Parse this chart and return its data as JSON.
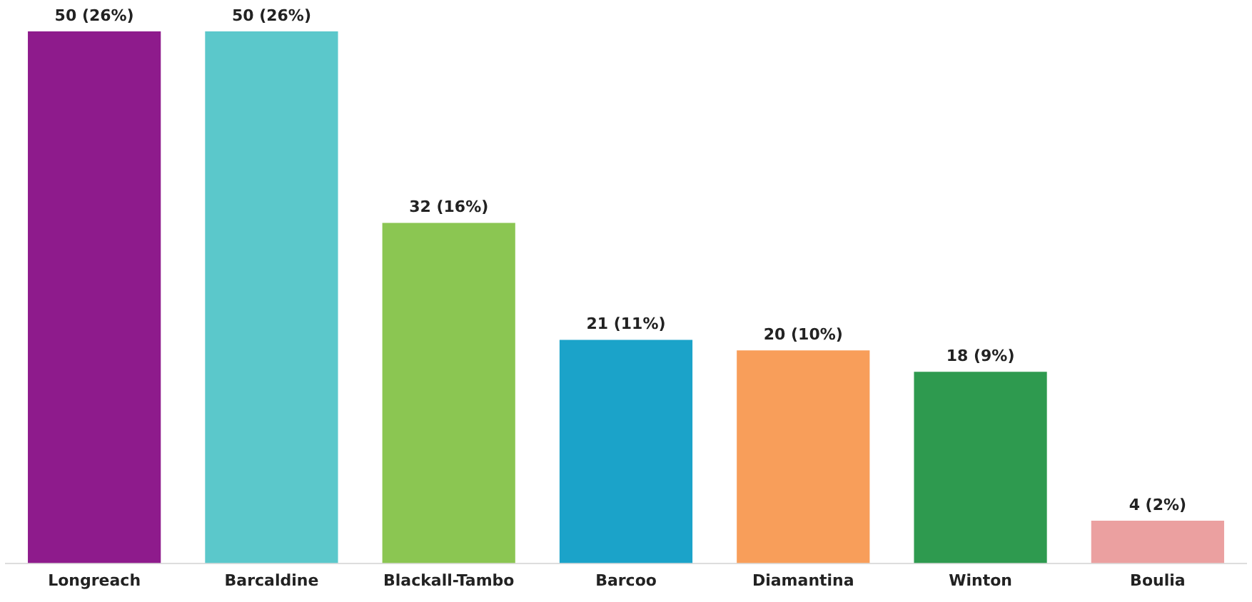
{
  "chart_data": {
    "type": "bar",
    "categories": [
      "Longreach",
      "Barcaldine",
      "Blackall-Tambo",
      "Barcoo",
      "Diamantina",
      "Winton",
      "Boulia"
    ],
    "values": [
      50,
      50,
      32,
      21,
      20,
      18,
      4
    ],
    "colors": [
      "#8e1b8c",
      "#5bc8cb",
      "#8bc652",
      "#1ba3c9",
      "#f89e5a",
      "#2e9a4f",
      "#eba0a0"
    ],
    "value_labels": [
      "50 (26%)",
      "50 (26%)",
      "32 (16%)",
      "21 (11%)",
      "20 (10%)",
      "18 (9%)",
      "4 (2%)"
    ],
    "grid": false,
    "legend": false
  }
}
